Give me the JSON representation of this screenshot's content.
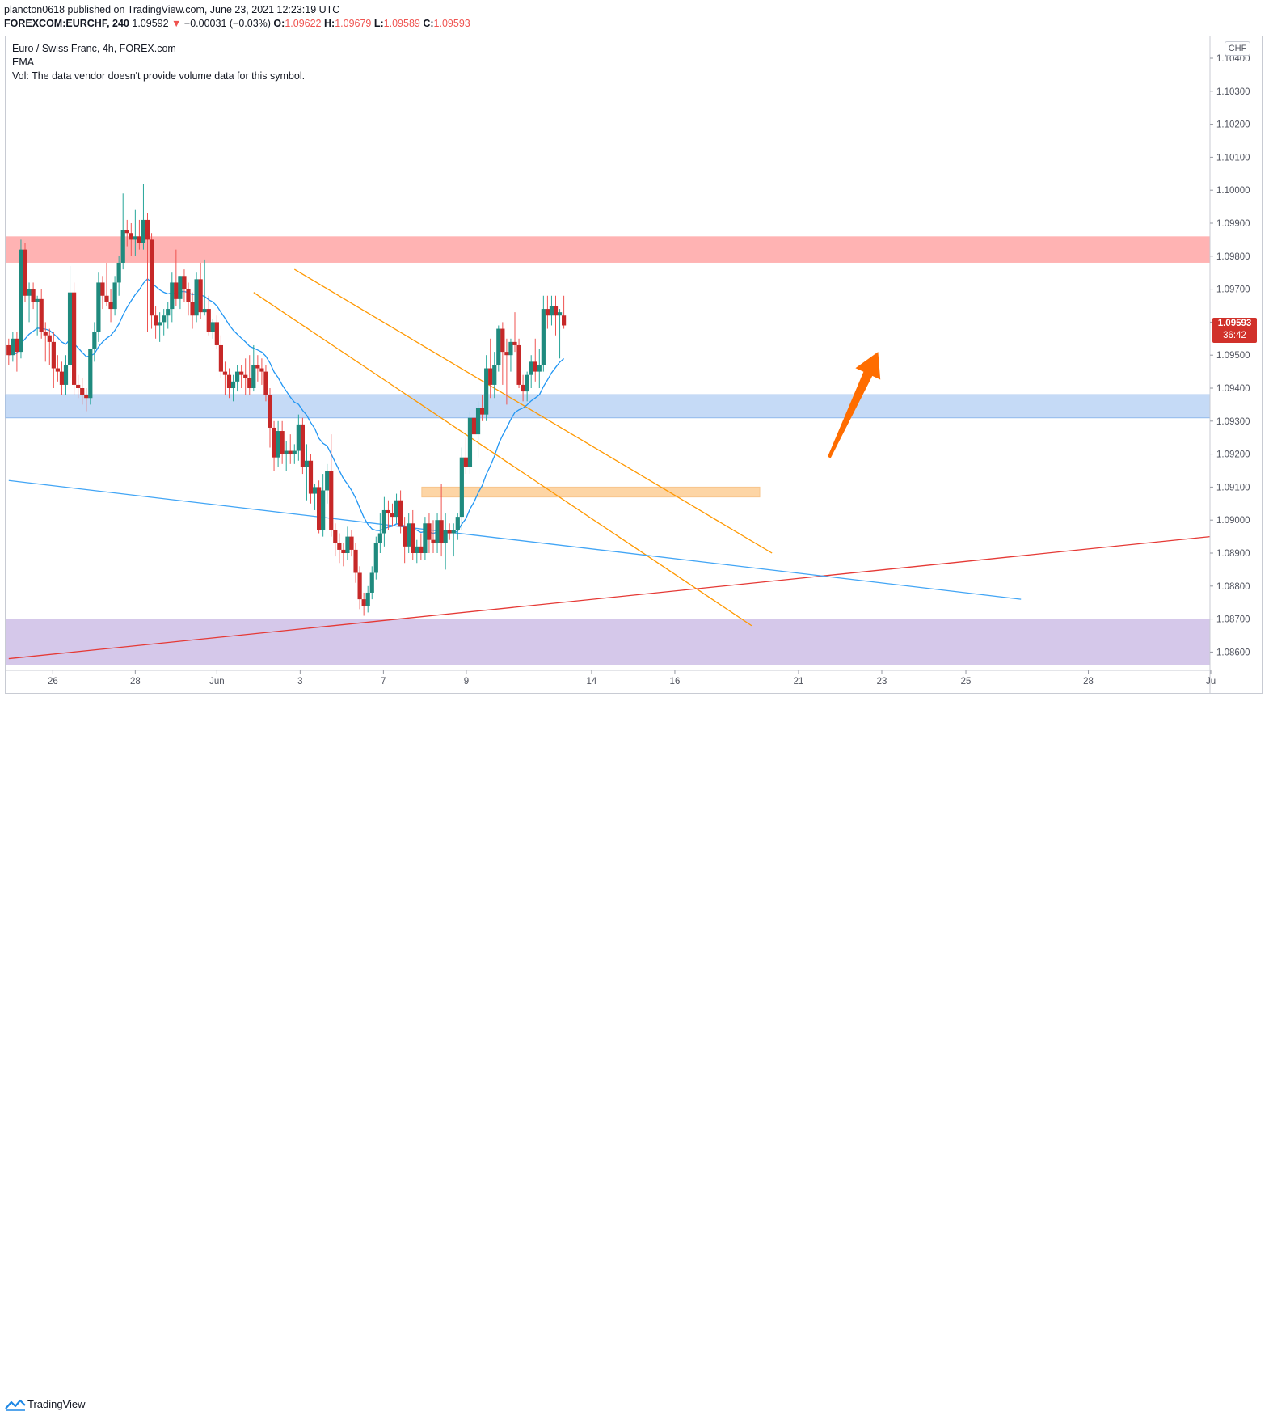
{
  "header": {
    "published_line": "plancton0618 published on TradingView.com, June 23, 2021 12:23:19 UTC",
    "symbol": "FOREXCOM:EURCHF, 240",
    "last": "1.09592",
    "change_arrow": "▼",
    "change": "−0.00031 (−0.03%)",
    "o_label": "O:",
    "o": "1.09622",
    "h_label": "H:",
    "h": "1.09679",
    "l_label": "L:",
    "l": "1.09589",
    "c_label": "C:",
    "c": "1.09593"
  },
  "legend": {
    "title": "Euro / Swiss Franc, 4h, FOREX.com",
    "ema": "EMA",
    "vol": "Vol: The data vendor doesn't provide volume data for this symbol."
  },
  "currency_badge": "CHF",
  "price_tag": {
    "price": "1.09593",
    "countdown": "36:42"
  },
  "footer": {
    "brand": "TradingView"
  },
  "colors": {
    "up": "#26a69a",
    "up_body": "#1f8a7e",
    "down": "#ef5350",
    "down_body": "#c62828",
    "ema": "#2196f3",
    "resistance_zone": "#ffb3b3",
    "support_zone": "#bbd4f5",
    "mid_zone": "#fdd5a5",
    "lower_zone": "#d5c8ea",
    "channel": "#ff9800",
    "trend_red": "#e53935",
    "trend_blue": "#42a5f5",
    "arrow": "#ff6d00"
  },
  "chart_data": {
    "type": "candlestick",
    "symbol": "EURCHF",
    "timeframe": "4h",
    "x_ticks": [
      "26",
      "28",
      "Jun",
      "3",
      "7",
      "9",
      "14",
      "16",
      "21",
      "23",
      "25",
      "28",
      "Ju"
    ],
    "y_ticks": [
      "1.10400",
      "1.10300",
      "1.10200",
      "1.10100",
      "1.10000",
      "1.09900",
      "1.09800",
      "1.09700",
      "1.09600",
      "1.09500",
      "1.09400",
      "1.09300",
      "1.09200",
      "1.09100",
      "1.09000",
      "1.08900",
      "1.08800",
      "1.08700",
      "1.08600"
    ],
    "ylim": [
      1.0855,
      1.1045
    ],
    "last_price": 1.09593,
    "candles": [
      [
        1.0953,
        1.0955,
        1.0947,
        1.095
      ],
      [
        1.095,
        1.0957,
        1.0948,
        1.0955
      ],
      [
        1.0955,
        1.0957,
        1.0945,
        1.0951
      ],
      [
        1.0951,
        1.0985,
        1.0949,
        1.0982
      ],
      [
        1.0982,
        1.0984,
        1.0966,
        1.0968
      ],
      [
        1.0968,
        1.0972,
        1.096,
        1.097
      ],
      [
        1.097,
        1.0972,
        1.0964,
        1.0966
      ],
      [
        1.0966,
        1.0968,
        1.0956,
        1.0967
      ],
      [
        1.0967,
        1.097,
        1.0955,
        1.0957
      ],
      [
        1.0957,
        1.096,
        1.0948,
        1.0956
      ],
      [
        1.0956,
        1.0958,
        1.0947,
        1.0954
      ],
      [
        1.0954,
        1.0957,
        1.094,
        1.0946
      ],
      [
        1.0946,
        1.095,
        1.0942,
        1.0945
      ],
      [
        1.0945,
        1.0948,
        1.0938,
        1.0941
      ],
      [
        1.0941,
        1.095,
        1.0938,
        1.0947
      ],
      [
        1.0947,
        1.0977,
        1.0943,
        1.0969
      ],
      [
        1.0969,
        1.0972,
        1.0938,
        1.0941
      ],
      [
        1.0941,
        1.0944,
        1.0937,
        1.094
      ],
      [
        1.094,
        1.0943,
        1.0935,
        1.0938
      ],
      [
        1.0938,
        1.094,
        1.0933,
        1.0937
      ],
      [
        1.0937,
        1.0951,
        1.0935,
        1.0952
      ],
      [
        1.0952,
        1.096,
        1.0948,
        1.0957
      ],
      [
        1.0957,
        1.0975,
        1.0954,
        1.0972
      ],
      [
        1.0972,
        1.0974,
        1.0964,
        1.0968
      ],
      [
        1.0968,
        1.0978,
        1.0965,
        1.0966
      ],
      [
        1.0966,
        1.097,
        1.096,
        1.0964
      ],
      [
        1.0964,
        1.0974,
        1.0962,
        1.0972
      ],
      [
        1.0972,
        1.098,
        1.0968,
        1.0978
      ],
      [
        1.0978,
        1.0999,
        1.0976,
        1.0988
      ],
      [
        1.0988,
        1.0991,
        1.0983,
        1.0987
      ],
      [
        1.0987,
        1.099,
        1.098,
        1.0985
      ],
      [
        1.0985,
        1.0994,
        1.098,
        1.0986
      ],
      [
        1.0986,
        1.0991,
        1.0982,
        1.0984
      ],
      [
        1.0984,
        1.1002,
        1.0982,
        1.0991
      ],
      [
        1.0991,
        1.0993,
        1.0957,
        1.0985
      ],
      [
        1.0985,
        1.0987,
        1.0958,
        1.0962
      ],
      [
        1.0962,
        1.0965,
        1.0955,
        1.0959
      ],
      [
        1.0959,
        1.0963,
        1.0954,
        1.096
      ],
      [
        1.096,
        1.0964,
        1.0956,
        1.0962
      ],
      [
        1.0962,
        1.0966,
        1.0958,
        1.0964
      ],
      [
        1.0964,
        1.0975,
        1.096,
        1.0972
      ],
      [
        1.0972,
        1.0982,
        1.0965,
        1.0967
      ],
      [
        1.0967,
        1.0974,
        1.0964,
        1.0974
      ],
      [
        1.0974,
        1.0976,
        1.0966,
        1.097
      ],
      [
        1.097,
        1.0972,
        1.0962,
        1.0966
      ],
      [
        1.0966,
        1.0969,
        1.0958,
        1.0962
      ],
      [
        1.0962,
        1.0975,
        1.096,
        1.0973
      ],
      [
        1.0973,
        1.0978,
        1.0961,
        1.0963
      ],
      [
        1.0963,
        1.0979,
        1.0962,
        1.0964
      ],
      [
        1.0964,
        1.0968,
        1.0956,
        1.0957
      ],
      [
        1.0957,
        1.0961,
        1.0955,
        1.096
      ],
      [
        1.096,
        1.0962,
        1.0952,
        1.0953
      ],
      [
        1.0953,
        1.0956,
        1.0943,
        1.0945
      ],
      [
        1.0945,
        1.0948,
        1.0938,
        1.0944
      ],
      [
        1.0944,
        1.0946,
        1.0937,
        1.094
      ],
      [
        1.094,
        1.0944,
        1.0936,
        1.0942
      ],
      [
        1.0942,
        1.0947,
        1.0939,
        1.0945
      ],
      [
        1.0945,
        1.0947,
        1.094,
        1.0944
      ],
      [
        1.0944,
        1.0949,
        1.0938,
        1.0943
      ],
      [
        1.0943,
        1.095,
        1.0938,
        1.094
      ],
      [
        1.094,
        1.0953,
        1.0939,
        1.0947
      ],
      [
        1.0947,
        1.095,
        1.0942,
        1.0946
      ],
      [
        1.0946,
        1.0949,
        1.0941,
        1.0945
      ],
      [
        1.0945,
        1.0947,
        1.0936,
        1.0938
      ],
      [
        1.0938,
        1.094,
        1.0922,
        1.0928
      ],
      [
        1.0928,
        1.093,
        1.0915,
        1.0919
      ],
      [
        1.0919,
        1.093,
        1.0916,
        1.0927
      ],
      [
        1.0927,
        1.093,
        1.0917,
        1.092
      ],
      [
        1.092,
        1.0924,
        1.0915,
        1.0921
      ],
      [
        1.0921,
        1.0926,
        1.0917,
        1.092
      ],
      [
        1.092,
        1.0923,
        1.0917,
        1.0921
      ],
      [
        1.0921,
        1.0932,
        1.0918,
        1.0929
      ],
      [
        1.0929,
        1.0931,
        1.0914,
        1.0916
      ],
      [
        1.0916,
        1.0923,
        1.0906,
        1.0918
      ],
      [
        1.0918,
        1.092,
        1.0905,
        1.0908
      ],
      [
        1.0908,
        1.0911,
        1.0903,
        1.091
      ],
      [
        1.091,
        1.0912,
        1.0896,
        1.0897
      ],
      [
        1.0897,
        1.0914,
        1.0895,
        1.0909
      ],
      [
        1.0909,
        1.0917,
        1.0905,
        1.0915
      ],
      [
        1.0915,
        1.0926,
        1.0895,
        1.0897
      ],
      [
        1.0897,
        1.0899,
        1.0889,
        1.0893
      ],
      [
        1.0893,
        1.0896,
        1.0887,
        1.0891
      ],
      [
        1.0891,
        1.0893,
        1.0886,
        1.089
      ],
      [
        1.089,
        1.0898,
        1.0888,
        1.0895
      ],
      [
        1.0895,
        1.0897,
        1.0889,
        1.0891
      ],
      [
        1.0891,
        1.0893,
        1.0881,
        1.0884
      ],
      [
        1.0884,
        1.0886,
        1.0873,
        1.0876
      ],
      [
        1.0876,
        1.0878,
        1.0871,
        1.0874
      ],
      [
        1.0874,
        1.088,
        1.0872,
        1.0878
      ],
      [
        1.0878,
        1.0886,
        1.0876,
        1.0884
      ],
      [
        1.0884,
        1.0895,
        1.0882,
        1.0893
      ],
      [
        1.0893,
        1.0902,
        1.089,
        1.0896
      ],
      [
        1.0896,
        1.0907,
        1.0892,
        1.0903
      ],
      [
        1.0903,
        1.0906,
        1.0897,
        1.0902
      ],
      [
        1.0902,
        1.0905,
        1.0898,
        1.0901
      ],
      [
        1.0901,
        1.0908,
        1.0899,
        1.0906
      ],
      [
        1.0906,
        1.0909,
        1.0896,
        1.0898
      ],
      [
        1.0898,
        1.0901,
        1.0887,
        1.0892
      ],
      [
        1.0892,
        1.0902,
        1.089,
        1.0899
      ],
      [
        1.0899,
        1.0903,
        1.0888,
        1.089
      ],
      [
        1.089,
        1.0894,
        1.0887,
        1.0892
      ],
      [
        1.0892,
        1.0896,
        1.0888,
        1.089
      ],
      [
        1.089,
        1.0901,
        1.0888,
        1.0899
      ],
      [
        1.0899,
        1.0902,
        1.089,
        1.0894
      ],
      [
        1.0894,
        1.09,
        1.089,
        1.0893
      ],
      [
        1.0893,
        1.0902,
        1.089,
        1.09
      ],
      [
        1.09,
        1.0911,
        1.0889,
        1.0893
      ],
      [
        1.0893,
        1.0902,
        1.0885,
        1.0897
      ],
      [
        1.0897,
        1.0899,
        1.0894,
        1.0896
      ],
      [
        1.0896,
        1.0899,
        1.0889,
        1.0897
      ],
      [
        1.0897,
        1.0902,
        1.0894,
        1.0901
      ],
      [
        1.0901,
        1.0922,
        1.0897,
        1.0919
      ],
      [
        1.0919,
        1.0925,
        1.0914,
        1.0916
      ],
      [
        1.0916,
        1.0933,
        1.0914,
        1.0931
      ],
      [
        1.0931,
        1.0933,
        1.0924,
        1.0926
      ],
      [
        1.0926,
        1.0936,
        1.0919,
        1.0934
      ],
      [
        1.0934,
        1.0938,
        1.093,
        1.0932
      ],
      [
        1.0932,
        1.095,
        1.093,
        1.0946
      ],
      [
        1.0946,
        1.0955,
        1.0937,
        1.0941
      ],
      [
        1.0941,
        1.0951,
        1.0937,
        1.0947
      ],
      [
        1.0947,
        1.0959,
        1.0945,
        1.0958
      ],
      [
        1.0958,
        1.096,
        1.0941,
        1.0951
      ],
      [
        1.0951,
        1.0955,
        1.0935,
        1.095
      ],
      [
        1.095,
        1.0955,
        1.0945,
        1.0954
      ],
      [
        1.0954,
        1.0963,
        1.0951,
        1.0953
      ],
      [
        1.0953,
        1.0955,
        1.094,
        1.0941
      ],
      [
        1.0941,
        1.0944,
        1.0936,
        1.0939
      ],
      [
        1.0939,
        1.0945,
        1.0936,
        1.0944
      ],
      [
        1.0944,
        1.095,
        1.094,
        1.0948
      ],
      [
        1.0948,
        1.0955,
        1.0942,
        1.0945
      ],
      [
        1.0945,
        1.0952,
        1.094,
        1.0947
      ],
      [
        1.0947,
        1.0968,
        1.0945,
        1.0964
      ],
      [
        1.0964,
        1.0968,
        1.0958,
        1.0962
      ],
      [
        1.0962,
        1.0968,
        1.0959,
        1.0965
      ],
      [
        1.0965,
        1.0968,
        1.0956,
        1.0962
      ],
      [
        1.0962,
        1.0964,
        1.0949,
        1.0963
      ],
      [
        1.0962,
        1.0968,
        1.0958,
        1.0959
      ]
    ],
    "ema_label": "EMA",
    "zones": [
      {
        "from": 1.0978,
        "to": 1.0986
      },
      {
        "from": 1.0931,
        "to": 1.0938
      },
      {
        "from": 1.0907,
        "to": 1.091
      },
      {
        "from": 1.0856,
        "to": 1.087
      }
    ],
    "lines": [
      {
        "kind": "channel-upper",
        "from": [
          70,
          1.0976
        ],
        "to": [
          187,
          1.089
        ]
      },
      {
        "kind": "channel-lower",
        "from": [
          60,
          1.0969
        ],
        "to": [
          182,
          1.0868
        ]
      },
      {
        "kind": "trend-red",
        "from": [
          0,
          1.0858
        ],
        "to": [
          372,
          1.0895
        ]
      },
      {
        "kind": "trend-blue",
        "from": [
          0,
          1.0912
        ],
        "to": [
          248,
          1.0876
        ]
      }
    ],
    "arrow": {
      "from": [
        201,
        1.0919
      ],
      "to": [
        213,
        1.0951
      ]
    },
    "grid": false,
    "legend_position": "top-left"
  }
}
